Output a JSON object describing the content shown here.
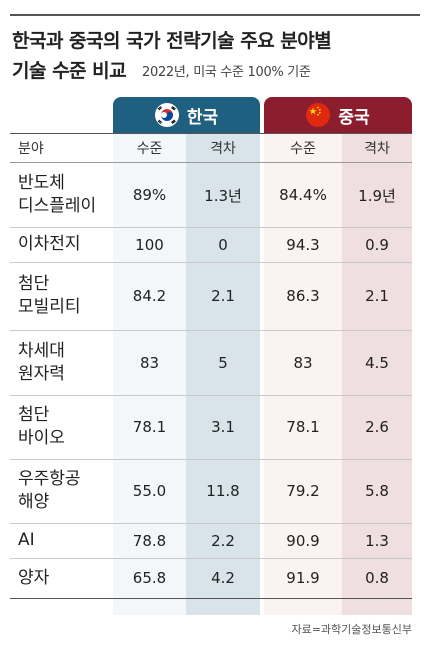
{
  "title_line1": "한국과 중국의 국가 전략기술 주요 분야별",
  "title_line2": "기술 수준 비교",
  "subtitle": "2022년, 미국 수준 100% 기준",
  "countries": {
    "korea": {
      "label": "한국",
      "color": "#1f5f80"
    },
    "china": {
      "label": "중국",
      "color": "#8c1d2e"
    }
  },
  "columns": {
    "field": "분야",
    "level": "수준",
    "gap": "격차"
  },
  "chart_data": {
    "type": "table",
    "title": "한국과 중국의 국가 전략기술 주요 분야별 기술 수준 비교",
    "subtitle": "2022년, 미국 수준 100% 기준",
    "columns": [
      "분야",
      "한국 수준",
      "한국 격차",
      "중국 수준",
      "중국 격차"
    ],
    "rows": [
      {
        "field": [
          "반도체",
          "디스플레이"
        ],
        "kr_level": "89%",
        "kr_gap": "1.3년",
        "cn_level": "84.4%",
        "cn_gap": "1.9년"
      },
      {
        "field": [
          "이차전지"
        ],
        "kr_level": "100",
        "kr_gap": "0",
        "cn_level": "94.3",
        "cn_gap": "0.9"
      },
      {
        "field": [
          "첨단",
          "모빌리티"
        ],
        "kr_level": "84.2",
        "kr_gap": "2.1",
        "cn_level": "86.3",
        "cn_gap": "2.1"
      },
      {
        "field": [
          "차세대",
          "원자력"
        ],
        "kr_level": "83",
        "kr_gap": "5",
        "cn_level": "83",
        "cn_gap": "4.5"
      },
      {
        "field": [
          "첨단",
          "바이오"
        ],
        "kr_level": "78.1",
        "kr_gap": "3.1",
        "cn_level": "78.1",
        "cn_gap": "2.6"
      },
      {
        "field": [
          "우주항공",
          "해양"
        ],
        "kr_level": "55.0",
        "kr_gap": "11.8",
        "cn_level": "79.2",
        "cn_gap": "5.8"
      },
      {
        "field": [
          "AI"
        ],
        "kr_level": "78.8",
        "kr_gap": "2.2",
        "cn_level": "90.9",
        "cn_gap": "1.3"
      },
      {
        "field": [
          "양자"
        ],
        "kr_level": "65.8",
        "kr_gap": "4.2",
        "cn_level": "91.9",
        "cn_gap": "0.8"
      }
    ]
  },
  "source": "자료=과학기술정보통신부"
}
